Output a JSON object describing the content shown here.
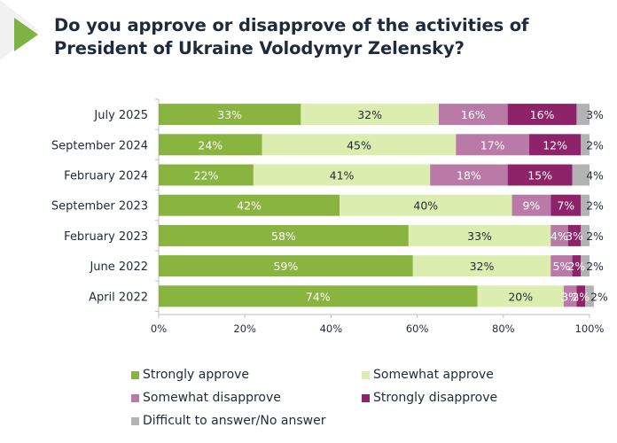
{
  "title": {
    "line1": "Do you approve or disapprove of the activities of",
    "line2": "President of Ukraine Volodymyr Zelensky?"
  },
  "colors": {
    "strongly_approve": "#8ab440",
    "somewhat_approve": "#dcedb0",
    "somewhat_disapprove": "#b97aa8",
    "strongly_disapprove": "#8e2369",
    "difficult": "#b3b3b3",
    "title_arrow": "#7cb342",
    "text": "#1f2a3a"
  },
  "chart_data": {
    "type": "bar",
    "orientation": "horizontal",
    "stacked": true,
    "title": "Do you approve or disapprove of the activities of President of Ukraine Volodymyr Zelensky?",
    "xlabel": "",
    "ylabel": "",
    "xlim": [
      0,
      100
    ],
    "xticks": [
      "0%",
      "20%",
      "40%",
      "60%",
      "80%",
      "100%"
    ],
    "grid": false,
    "legend_position": "bottom",
    "categories": [
      "July 2025",
      "September 2024",
      "February 2024",
      "September 2023",
      "February 2023",
      "June 2022",
      "April 2022"
    ],
    "series": [
      {
        "name": "Strongly approve",
        "values": [
          33,
          24,
          22,
          42,
          58,
          59,
          74
        ]
      },
      {
        "name": "Somewhat approve",
        "values": [
          32,
          45,
          41,
          40,
          33,
          32,
          20
        ]
      },
      {
        "name": "Somewhat disapprove",
        "values": [
          16,
          17,
          18,
          9,
          4,
          5,
          3
        ]
      },
      {
        "name": "Strongly disapprove",
        "values": [
          16,
          12,
          15,
          7,
          3,
          2,
          2
        ]
      },
      {
        "name": "Difficult to answer/No answer",
        "values": [
          3,
          2,
          4,
          2,
          2,
          2,
          2
        ]
      }
    ]
  },
  "legend": [
    {
      "label": "Strongly approve",
      "color_key": "strongly_approve"
    },
    {
      "label": "Somewhat approve",
      "color_key": "somewhat_approve"
    },
    {
      "label": "Somewhat disapprove",
      "color_key": "somewhat_disapprove"
    },
    {
      "label": "Strongly disapprove",
      "color_key": "strongly_disapprove"
    },
    {
      "label": "Difficult to answer/No answer",
      "color_key": "difficult"
    }
  ]
}
